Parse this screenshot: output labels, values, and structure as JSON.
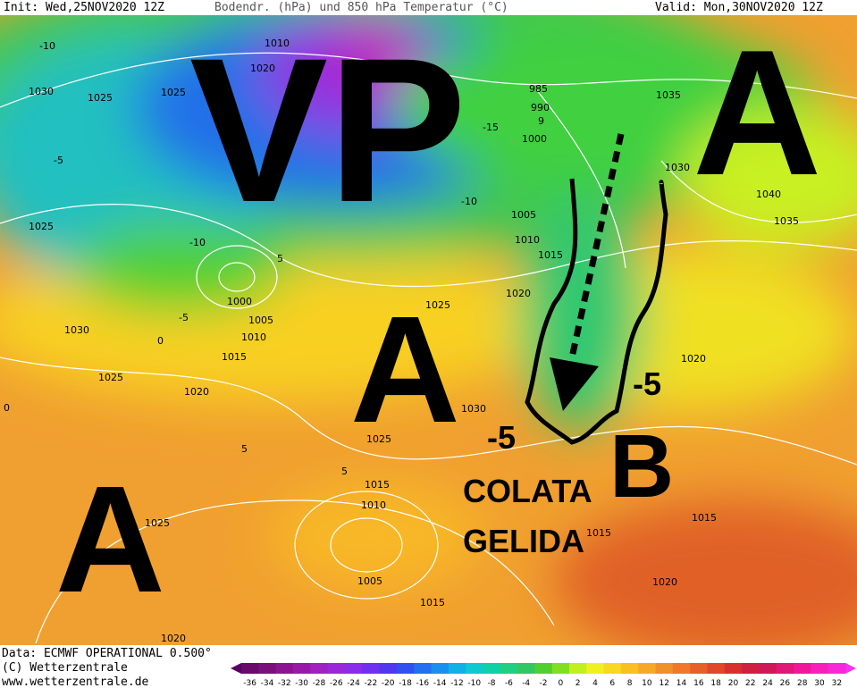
{
  "header": {
    "init": "Init: Wed,25NOV2020 12Z",
    "title": "Bodendr. (hPa) und 850 hPa Temperatur (°C)",
    "valid": "Valid: Mon,30NOV2020 12Z"
  },
  "annotations": {
    "vp": "VP",
    "high_northeast": "A",
    "high_center": "A",
    "high_southwest": "A",
    "low": "B",
    "minus_east": "-5",
    "minus_west": "-5",
    "caption_line1": "COLATA",
    "caption_line2": "GELIDA"
  },
  "isobar_labels": [
    1010,
    1020,
    1030,
    1025,
    1025,
    985,
    990,
    9,
    1000,
    1035,
    1030,
    1040,
    1035,
    1005,
    1010,
    1015,
    1020,
    1025,
    1000,
    1005,
    1010,
    1015,
    1030,
    1025,
    1020,
    1030,
    1025,
    1015,
    1010,
    1005,
    1015,
    1015,
    1015,
    1020,
    1020,
    1025,
    1020,
    1025
  ],
  "isotherm_labels": [
    -10,
    -5,
    -10,
    -5,
    0,
    5,
    5,
    -15,
    -10,
    5,
    0
  ],
  "footer": {
    "source": "Data: ECMWF OPERATIONAL 0.500°",
    "copyright": "(C) Wetterzentrale",
    "url": "www.wetterzentrale.de"
  },
  "colorbar": {
    "ticks": [
      -36,
      -34,
      -32,
      -30,
      -28,
      -26,
      -24,
      -22,
      -20,
      -18,
      -16,
      -14,
      -12,
      -10,
      -8,
      -6,
      -4,
      -2,
      0,
      2,
      4,
      6,
      8,
      10,
      12,
      14,
      16,
      18,
      20,
      22,
      24,
      26,
      28,
      30,
      32
    ],
    "colors": [
      "#6a0a6a",
      "#7a107a",
      "#8c1490",
      "#9a18a8",
      "#a020c0",
      "#9a28d8",
      "#8a2ce8",
      "#7030f0",
      "#5038f0",
      "#3050f0",
      "#2070f0",
      "#1890f0",
      "#10b0e8",
      "#10c8d0",
      "#10d0a8",
      "#20d080",
      "#30c860",
      "#50d030",
      "#80e020",
      "#c0f020",
      "#f0f020",
      "#f8d820",
      "#f8c020",
      "#f8a828",
      "#f09028",
      "#f07828",
      "#e86028",
      "#e04828",
      "#d83030",
      "#d02040",
      "#d01858",
      "#e01878",
      "#f01898",
      "#f820b8",
      "#f828d8"
    ]
  }
}
